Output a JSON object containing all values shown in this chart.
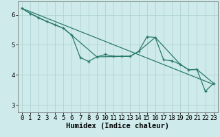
{
  "xlabel": "Humidex (Indice chaleur)",
  "xlim": [
    -0.5,
    23.5
  ],
  "ylim": [
    2.75,
    6.45
  ],
  "yticks": [
    3,
    4,
    5,
    6
  ],
  "xticks": [
    0,
    1,
    2,
    3,
    4,
    5,
    6,
    7,
    8,
    9,
    10,
    11,
    12,
    13,
    14,
    15,
    16,
    17,
    18,
    19,
    20,
    21,
    22,
    23
  ],
  "line1_x": [
    0,
    1,
    2,
    3,
    4,
    5,
    6,
    7,
    8,
    9,
    10,
    11,
    12,
    13,
    14,
    15,
    16,
    17,
    18,
    19,
    20,
    21,
    22,
    23
  ],
  "line1_y": [
    6.22,
    6.05,
    5.9,
    5.78,
    5.67,
    5.55,
    5.32,
    4.58,
    4.45,
    4.6,
    4.68,
    4.62,
    4.62,
    4.62,
    4.78,
    5.27,
    5.25,
    4.5,
    4.47,
    4.35,
    4.17,
    4.18,
    3.45,
    3.72
  ],
  "line2_x": [
    0,
    23
  ],
  "line2_y": [
    6.22,
    3.68
  ],
  "line3_x": [
    0,
    1,
    3,
    5,
    6,
    9,
    13,
    14,
    16,
    19,
    20,
    21,
    23
  ],
  "line3_y": [
    6.22,
    6.05,
    5.78,
    5.55,
    5.32,
    4.6,
    4.62,
    4.78,
    5.25,
    4.35,
    4.17,
    4.18,
    3.72
  ],
  "color": "#2a7a6a",
  "bg_color": "#ceeaea",
  "grid_color": "#aacece",
  "tick_fontsize": 6.5,
  "label_fontsize": 7.5
}
